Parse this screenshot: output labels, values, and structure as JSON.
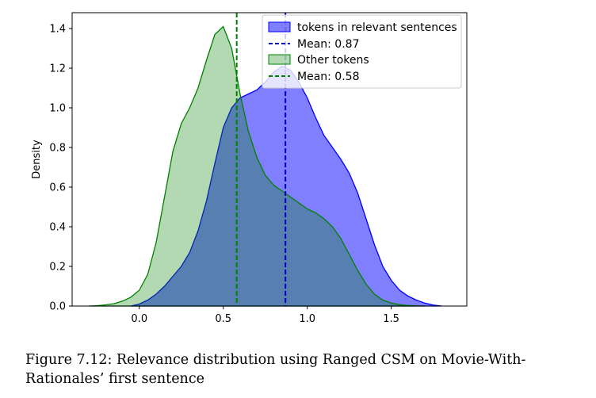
{
  "chart_data": {
    "type": "area",
    "title": "",
    "xlabel": "",
    "ylabel": "Density",
    "xlim": [
      -0.4,
      1.95
    ],
    "ylim": [
      0,
      1.48
    ],
    "x_ticks": [
      0.0,
      0.5,
      1.0,
      1.5
    ],
    "x_tick_labels": [
      "0.0",
      "0.5",
      "1.0",
      "1.5"
    ],
    "y_ticks": [
      0.0,
      0.2,
      0.4,
      0.6,
      0.8,
      1.0,
      1.2,
      1.4
    ],
    "y_tick_labels": [
      "0.0",
      "0.2",
      "0.4",
      "0.6",
      "0.8",
      "1.0",
      "1.2",
      "1.4"
    ],
    "grid": false,
    "legend_position": "top-right",
    "series": [
      {
        "name": "tokens in relevant sentences",
        "color": "#0000ff",
        "fill_opacity": 0.5,
        "x": [
          -0.05,
          0.0,
          0.05,
          0.1,
          0.15,
          0.2,
          0.25,
          0.3,
          0.35,
          0.4,
          0.45,
          0.5,
          0.55,
          0.6,
          0.65,
          0.7,
          0.75,
          0.8,
          0.85,
          0.9,
          0.95,
          1.0,
          1.05,
          1.1,
          1.15,
          1.2,
          1.25,
          1.3,
          1.35,
          1.4,
          1.45,
          1.5,
          1.55,
          1.6,
          1.65,
          1.7,
          1.75,
          1.8
        ],
        "y": [
          0.0,
          0.01,
          0.03,
          0.06,
          0.1,
          0.15,
          0.2,
          0.27,
          0.38,
          0.53,
          0.72,
          0.9,
          1.0,
          1.05,
          1.07,
          1.09,
          1.13,
          1.18,
          1.21,
          1.19,
          1.13,
          1.05,
          0.95,
          0.86,
          0.8,
          0.74,
          0.67,
          0.57,
          0.44,
          0.31,
          0.2,
          0.13,
          0.08,
          0.05,
          0.03,
          0.015,
          0.005,
          0.0
        ]
      },
      {
        "name": "Other tokens",
        "color": "#008000",
        "fill_opacity": 0.3,
        "x": [
          -0.3,
          -0.25,
          -0.2,
          -0.15,
          -0.1,
          -0.05,
          0.0,
          0.05,
          0.1,
          0.15,
          0.2,
          0.25,
          0.3,
          0.35,
          0.4,
          0.45,
          0.5,
          0.55,
          0.6,
          0.65,
          0.7,
          0.75,
          0.8,
          0.85,
          0.9,
          0.95,
          1.0,
          1.05,
          1.1,
          1.15,
          1.2,
          1.25,
          1.3,
          1.35,
          1.4,
          1.45,
          1.5,
          1.55,
          1.6,
          1.65,
          1.7
        ],
        "y": [
          0.0,
          0.002,
          0.006,
          0.012,
          0.025,
          0.045,
          0.08,
          0.16,
          0.32,
          0.55,
          0.78,
          0.92,
          1.0,
          1.1,
          1.24,
          1.37,
          1.41,
          1.3,
          1.07,
          0.88,
          0.75,
          0.66,
          0.61,
          0.58,
          0.55,
          0.52,
          0.49,
          0.47,
          0.44,
          0.4,
          0.34,
          0.26,
          0.18,
          0.11,
          0.06,
          0.03,
          0.015,
          0.007,
          0.003,
          0.001,
          0.0
        ]
      }
    ],
    "mean_lines": [
      {
        "label": "Mean: 0.87",
        "x": 0.87,
        "color": "#0000cc"
      },
      {
        "label": "Mean: 0.58",
        "x": 0.58,
        "color": "#008000"
      }
    ]
  },
  "caption": {
    "text": "Figure 7.12: Relevance distribution using Ranged CSM on Movie-With-Rationales’ first sentence"
  }
}
